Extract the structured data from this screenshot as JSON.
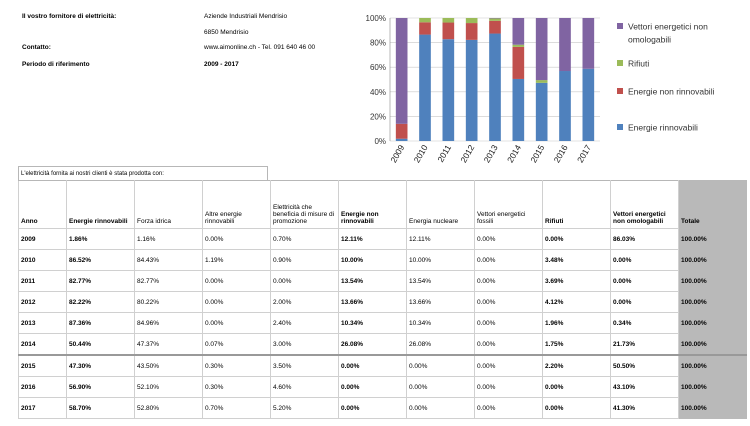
{
  "supplier": {
    "supplier_label": "Il vostro fornitore di elettricità:",
    "company": "Aziende Industriali Mendrisio",
    "address": "6850 Mendrisio",
    "contact_label": "Contatto:",
    "contact_value": "www.aimonline.ch  -  Tel. 091 640 46 00",
    "period_label": "Periodo di riferimento",
    "period_value": "2009 - 2017"
  },
  "table_caption": "L'elettricità fornita ai nostri clienti è stata prodotta con:",
  "table": {
    "headers": [
      "Anno",
      "Energie rinnovabili",
      "Forza idrica",
      "Altre energie rinnovabili",
      "Elettricità che beneficia di misure di promozione",
      "Energie non rinnovabili",
      "Energia nucleare",
      "Vettori energetici fossili",
      "Rifiuti",
      "Vettori energetici non omologabili",
      "Totale"
    ],
    "rows": [
      [
        "2009",
        "1.86%",
        "1.16%",
        "0.00%",
        "0.70%",
        "12.11%",
        "12.11%",
        "0.00%",
        "0.00%",
        "86.03%",
        "100.00%"
      ],
      [
        "2010",
        "86.52%",
        "84.43%",
        "1.19%",
        "0.90%",
        "10.00%",
        "10.00%",
        "0.00%",
        "3.48%",
        "0.00%",
        "100.00%"
      ],
      [
        "2011",
        "82.77%",
        "82.77%",
        "0.00%",
        "0.00%",
        "13.54%",
        "13.54%",
        "0.00%",
        "3.69%",
        "0.00%",
        "100.00%"
      ],
      [
        "2012",
        "82.22%",
        "80.22%",
        "0.00%",
        "2.00%",
        "13.66%",
        "13.66%",
        "0.00%",
        "4.12%",
        "0.00%",
        "100.00%"
      ],
      [
        "2013",
        "87.36%",
        "84.96%",
        "0.00%",
        "2.40%",
        "10.34%",
        "10.34%",
        "0.00%",
        "1.96%",
        "0.34%",
        "100.00%"
      ],
      [
        "2014",
        "50.44%",
        "47.37%",
        "0.07%",
        "3.00%",
        "26.08%",
        "26.08%",
        "0.00%",
        "1.75%",
        "21.73%",
        "100.00%"
      ],
      [
        "2015",
        "47.30%",
        "43.50%",
        "0.30%",
        "3.50%",
        "0.00%",
        "0.00%",
        "0.00%",
        "2.20%",
        "50.50%",
        "100.00%"
      ],
      [
        "2016",
        "56.90%",
        "52.10%",
        "0.30%",
        "4.60%",
        "0.00%",
        "0.00%",
        "0.00%",
        "0.00%",
        "43.10%",
        "100.00%"
      ],
      [
        "2017",
        "58.70%",
        "52.80%",
        "0.70%",
        "5.20%",
        "0.00%",
        "0.00%",
        "0.00%",
        "0.00%",
        "41.30%",
        "100.00%"
      ]
    ]
  },
  "chart_data": {
    "type": "bar",
    "stacked": true,
    "categories": [
      "2009",
      "2010",
      "2011",
      "2012",
      "2013",
      "2014",
      "2015",
      "2016",
      "2017"
    ],
    "series": [
      {
        "name": "Energie rinnovabili",
        "color": "#4f81bd",
        "values": [
          1.86,
          86.52,
          82.77,
          82.22,
          87.36,
          50.44,
          47.3,
          56.9,
          58.7
        ]
      },
      {
        "name": "Energie non rinnovabili",
        "color": "#c0504d",
        "values": [
          12.11,
          10.0,
          13.54,
          13.66,
          10.34,
          26.08,
          0.0,
          0.0,
          0.0
        ]
      },
      {
        "name": "Rifiuti",
        "color": "#9bbb59",
        "values": [
          0.0,
          3.48,
          3.69,
          4.12,
          1.96,
          1.75,
          2.2,
          0.0,
          0.0
        ]
      },
      {
        "name": "Vettori energetici non omologabili",
        "color": "#8064a2",
        "values": [
          86.03,
          0.0,
          0.0,
          0.0,
          0.34,
          21.73,
          50.5,
          43.1,
          41.3
        ]
      }
    ],
    "ylim": [
      0,
      100
    ],
    "y_ticks": [
      "0%",
      "20%",
      "40%",
      "60%",
      "80%",
      "100%"
    ],
    "legend_order": [
      "Vettori energetici non omologabili",
      "Rifiuti",
      "Energie non rinnovabili",
      "Energie rinnovabili"
    ],
    "legend_position": "right",
    "grid": true
  }
}
